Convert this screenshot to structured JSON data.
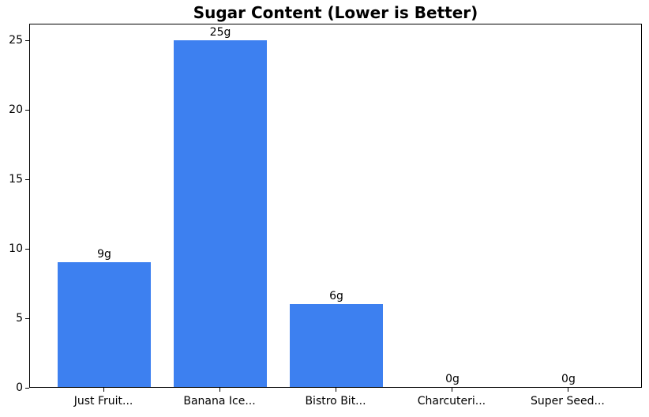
{
  "chart_data": {
    "type": "bar",
    "title": "Sugar Content (Lower is Better)",
    "categories": [
      "Just Fruit...",
      "Banana Ice...",
      "Bistro Bit...",
      "Charcuteri...",
      "Super Seed..."
    ],
    "values": [
      9,
      25,
      6,
      0,
      0
    ],
    "bar_labels": [
      "9g",
      "25g",
      "6g",
      "0g",
      "0g"
    ],
    "xlabel": "",
    "ylabel": "",
    "ylim": [
      0,
      26.25
    ],
    "xlim": [
      -0.64,
      4.64
    ],
    "yticks": [
      0,
      5,
      10,
      15,
      20,
      25
    ],
    "bar_width_units": 0.8,
    "bar_color": "#3d80f0",
    "axis_color": "#000000",
    "text_color": "#000000",
    "background_color": "#ffffff",
    "grid": false,
    "legend": "none"
  }
}
